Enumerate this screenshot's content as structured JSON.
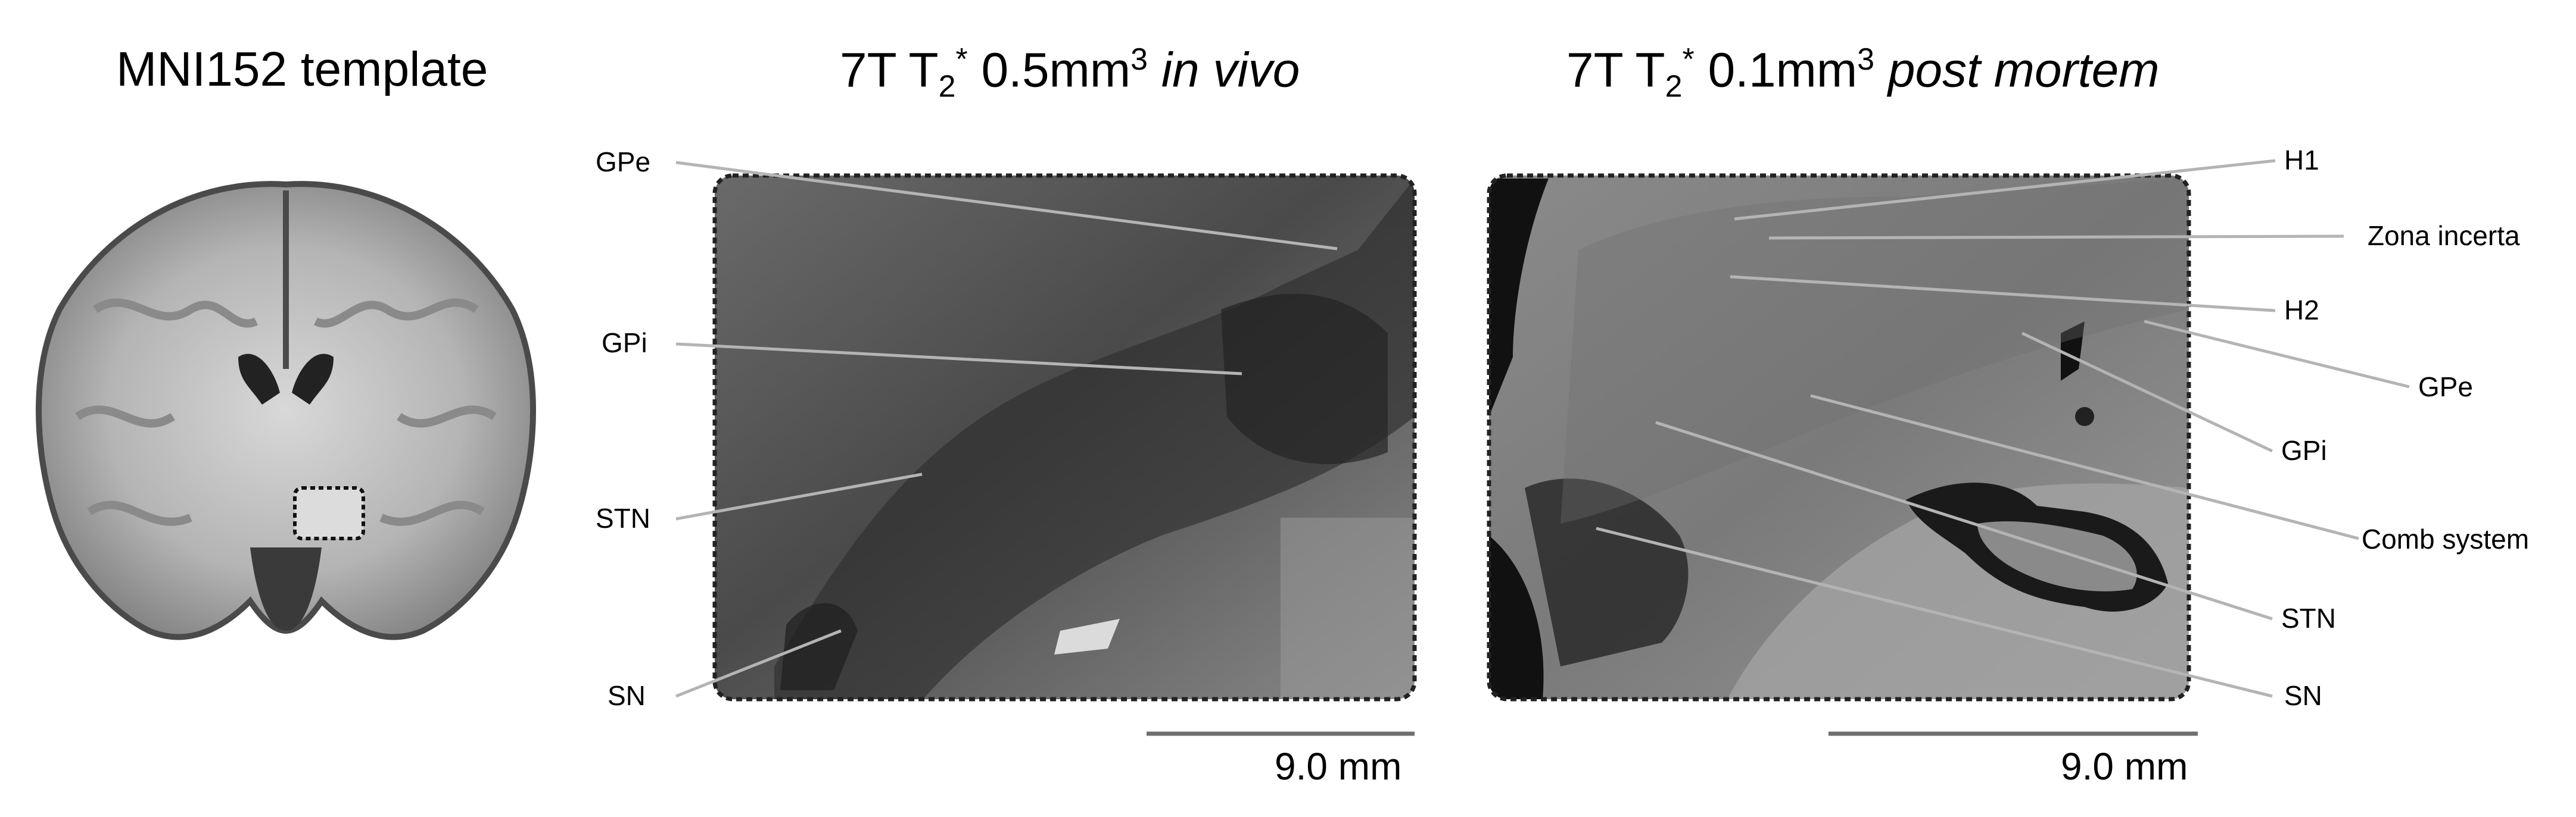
{
  "panels": {
    "template": {
      "title": "MNI152 template"
    },
    "invivo": {
      "title_prefix": "7T T",
      "title_sub": "2",
      "title_sup": "*",
      "title_res": " 0.5mm",
      "title_res_sup": "3",
      "title_italic": "in vivo",
      "scale_bar": "9.0 mm",
      "labels": [
        "GPe",
        "GPi",
        "STN",
        "SN"
      ]
    },
    "postmortem": {
      "title_prefix": "7T T",
      "title_sub": "2",
      "title_sup": "*",
      "title_res": " 0.1mm",
      "title_res_sup": "3",
      "title_italic": "post mortem",
      "scale_bar": "9.0 mm",
      "labels": [
        "H1",
        "Zona incerta",
        "H2",
        "GPe",
        "GPi",
        "Comb system",
        "STN",
        "SN"
      ]
    }
  },
  "colors": {
    "leader_line": "#b4b4b4",
    "scale_bar": "#6e6e6e",
    "dotted_frame": "#222222"
  }
}
